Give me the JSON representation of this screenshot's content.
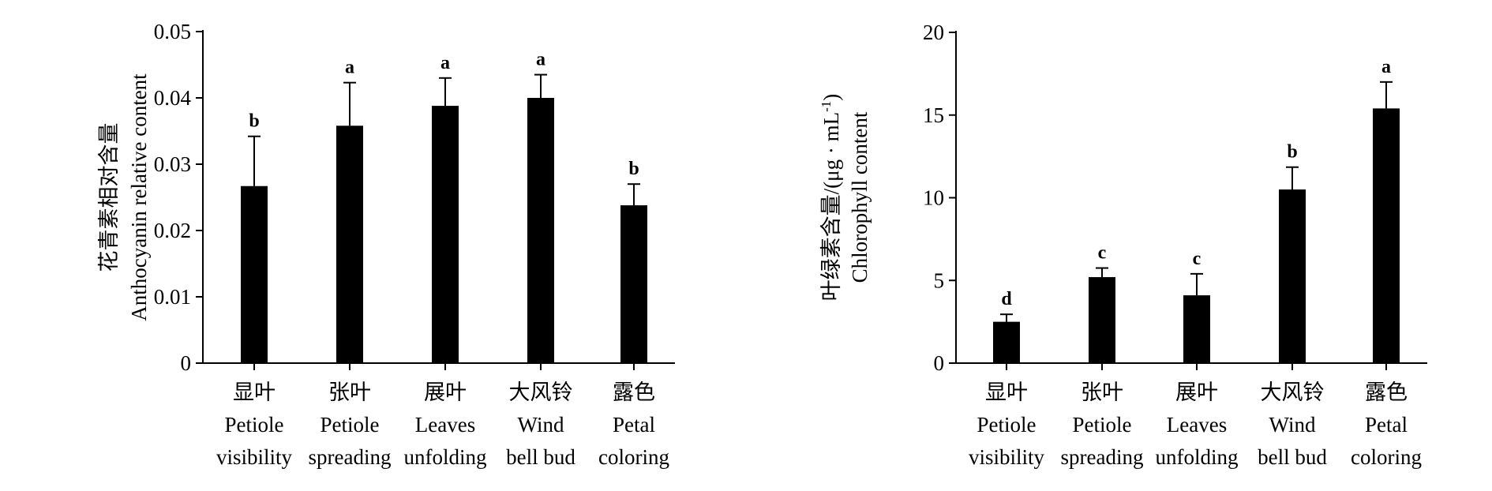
{
  "chart_data": [
    {
      "type": "bar",
      "title": "",
      "ylabel_lines": [
        "花青素相对含量",
        "Anthocyanin relative content"
      ],
      "xlabel": "",
      "ylim": [
        0,
        0.05
      ],
      "yticks": [
        0,
        0.01,
        0.02,
        0.03,
        0.04,
        0.05
      ],
      "ytick_labels": [
        "0",
        "0.01",
        "0.02",
        "0.03",
        "0.04",
        "0.05"
      ],
      "categories": [
        [
          "显叶",
          "Petiole",
          "visibility"
        ],
        [
          "张叶",
          "Petiole",
          "spreading"
        ],
        [
          "展叶",
          "Leaves",
          "unfolding"
        ],
        [
          "大风铃",
          "Wind",
          "bell bud"
        ],
        [
          "露色",
          "Petal",
          "coloring"
        ]
      ],
      "values": [
        0.0267,
        0.0358,
        0.0388,
        0.04,
        0.0238
      ],
      "errors": [
        0.0075,
        0.0065,
        0.0042,
        0.0035,
        0.0032
      ],
      "significance": [
        "b",
        "a",
        "a",
        "a",
        "b"
      ],
      "bar_color": "#000000"
    },
    {
      "type": "bar",
      "title": "",
      "ylabel_lines": [
        "叶绿素含量/(μg · mL-1)",
        "Chlorophyll content"
      ],
      "ylabel_parts": {
        "main": "叶绿素含量/(μg · mL",
        "sup": "-1",
        "close": ")"
      },
      "xlabel": "",
      "ylim": [
        0,
        20
      ],
      "yticks": [
        0,
        5,
        10,
        15,
        20
      ],
      "ytick_labels": [
        "0",
        "5",
        "10",
        "15",
        "20"
      ],
      "categories": [
        [
          "显叶",
          "Petiole",
          "visibility"
        ],
        [
          "张叶",
          "Petiole",
          "spreading"
        ],
        [
          "展叶",
          "Leaves",
          "unfolding"
        ],
        [
          "大风铃",
          "Wind",
          "bell bud"
        ],
        [
          "露色",
          "Petal",
          "coloring"
        ]
      ],
      "values": [
        2.5,
        5.2,
        4.1,
        10.5,
        15.4
      ],
      "errors": [
        0.45,
        0.55,
        1.3,
        1.35,
        1.6
      ],
      "significance": [
        "d",
        "c",
        "c",
        "b",
        "a"
      ],
      "bar_color": "#000000"
    }
  ]
}
